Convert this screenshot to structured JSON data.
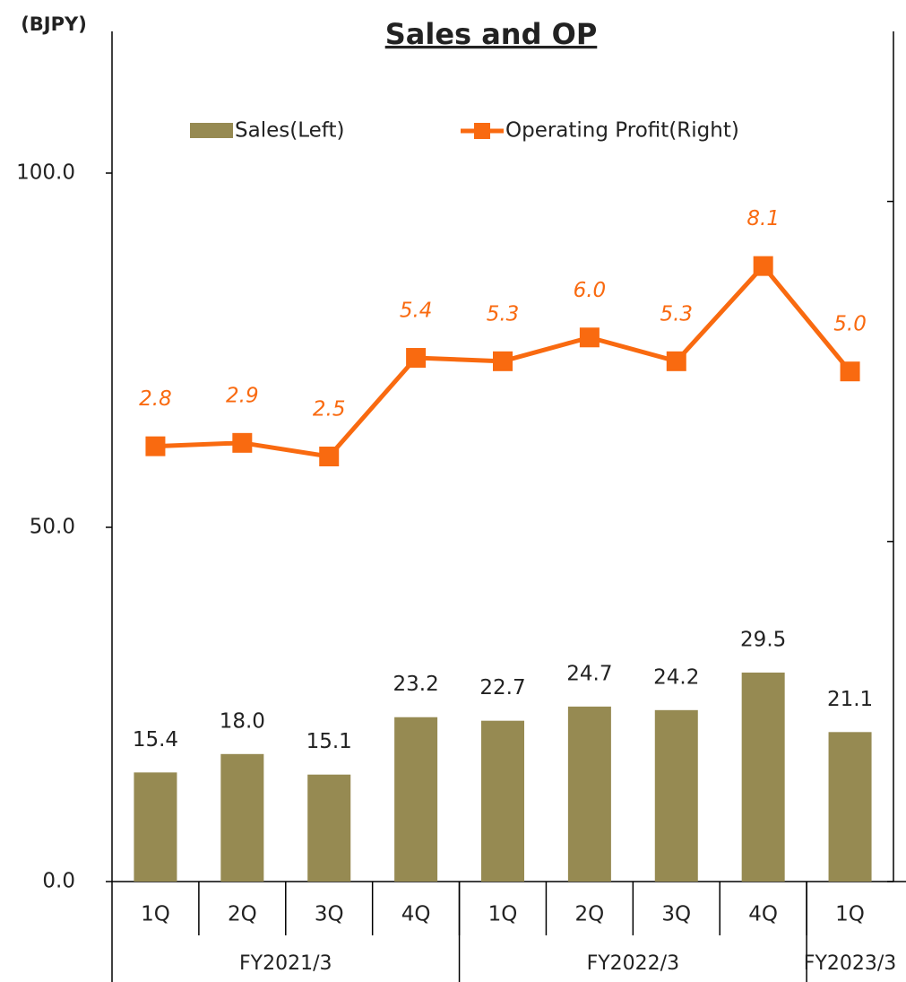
{
  "chart_data": {
    "type": "bar_line",
    "title": "Sales and OP",
    "y_label": "(BJPY)",
    "categories": [
      "1Q",
      "2Q",
      "3Q",
      "4Q",
      "1Q",
      "2Q",
      "3Q",
      "4Q",
      "1Q"
    ],
    "groups": [
      {
        "name": "FY2021/3",
        "count": 4
      },
      {
        "name": "FY2022/3",
        "count": 4
      },
      {
        "name": "FY2023/3",
        "count": 1
      }
    ],
    "series": [
      {
        "name": "Sales(Left)",
        "type": "bar",
        "axis": "y",
        "color": "#968a52",
        "values": [
          15.4,
          18.0,
          15.1,
          23.2,
          22.7,
          24.7,
          24.2,
          29.5,
          21.1
        ],
        "value_labels": [
          "15.4",
          "18.0",
          "15.1",
          "23.2",
          "22.7",
          "24.7",
          "24.2",
          "29.5",
          "21.1"
        ]
      },
      {
        "name": "Operating Profit(Right)",
        "type": "line",
        "axis": "y2",
        "color": "#f96a10",
        "values": [
          2.8,
          2.9,
          2.5,
          5.4,
          5.3,
          6.0,
          5.3,
          8.1,
          5.0
        ],
        "value_labels": [
          "2.8",
          "2.9",
          "2.5",
          "5.4",
          "5.3",
          "6.0",
          "5.3",
          "8.1",
          "5.0"
        ]
      }
    ],
    "ylim": [
      0,
      120
    ],
    "yticks": [
      {
        "value": 0,
        "label": "0.0"
      },
      {
        "value": 50,
        "label": "50.0"
      },
      {
        "value": 100,
        "label": "100.0"
      }
    ],
    "y2lim": [
      -10,
      15
    ],
    "y2ticks": [
      -10,
      0,
      10
    ],
    "legend": "top"
  }
}
